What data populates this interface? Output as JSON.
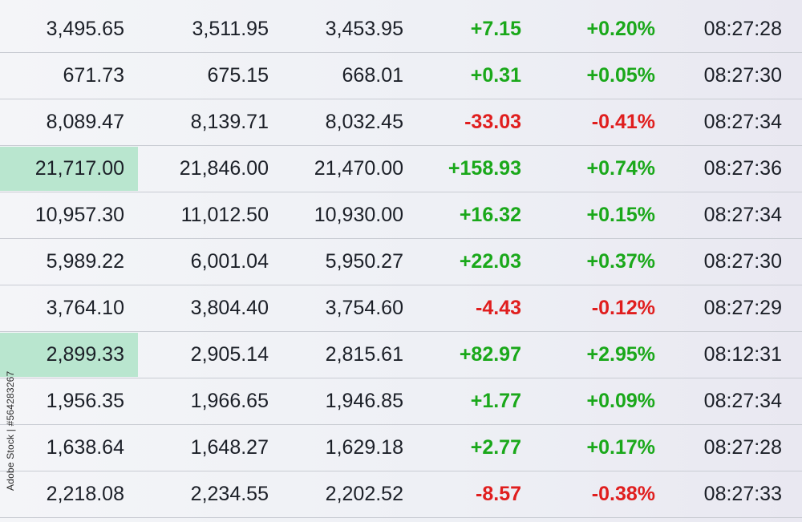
{
  "rows": [
    {
      "last": "3,495.65",
      "high": "3,511.95",
      "low": "3,453.95",
      "change": "+7.15",
      "percent": "+0.20%",
      "time": "08:27:28",
      "trend": "up",
      "highlight": false
    },
    {
      "last": "671.73",
      "high": "675.15",
      "low": "668.01",
      "change": "+0.31",
      "percent": "+0.05%",
      "time": "08:27:30",
      "trend": "up",
      "highlight": false
    },
    {
      "last": "8,089.47",
      "high": "8,139.71",
      "low": "8,032.45",
      "change": "-33.03",
      "percent": "-0.41%",
      "time": "08:27:34",
      "trend": "down",
      "highlight": false
    },
    {
      "last": "21,717.00",
      "high": "21,846.00",
      "low": "21,470.00",
      "change": "+158.93",
      "percent": "+0.74%",
      "time": "08:27:36",
      "trend": "up",
      "highlight": true
    },
    {
      "last": "10,957.30",
      "high": "11,012.50",
      "low": "10,930.00",
      "change": "+16.32",
      "percent": "+0.15%",
      "time": "08:27:34",
      "trend": "up",
      "highlight": false
    },
    {
      "last": "5,989.22",
      "high": "6,001.04",
      "low": "5,950.27",
      "change": "+22.03",
      "percent": "+0.37%",
      "time": "08:27:30",
      "trend": "up",
      "highlight": false
    },
    {
      "last": "3,764.10",
      "high": "3,804.40",
      "low": "3,754.60",
      "change": "-4.43",
      "percent": "-0.12%",
      "time": "08:27:29",
      "trend": "down",
      "highlight": false
    },
    {
      "last": "2,899.33",
      "high": "2,905.14",
      "low": "2,815.61",
      "change": "+82.97",
      "percent": "+2.95%",
      "time": "08:12:31",
      "trend": "up",
      "highlight": true
    },
    {
      "last": "1,956.35",
      "high": "1,966.65",
      "low": "1,946.85",
      "change": "+1.77",
      "percent": "+0.09%",
      "time": "08:27:34",
      "trend": "up",
      "highlight": false
    },
    {
      "last": "1,638.64",
      "high": "1,648.27",
      "low": "1,629.18",
      "change": "+2.77",
      "percent": "+0.17%",
      "time": "08:27:28",
      "trend": "up",
      "highlight": false
    },
    {
      "last": "2,218.08",
      "high": "2,234.55",
      "low": "2,202.52",
      "change": "-8.57",
      "percent": "-0.38%",
      "time": "08:27:33",
      "trend": "down",
      "highlight": false
    }
  ],
  "watermark": "Adobe Stock | #564283267",
  "colors": {
    "up": "#1aa81a",
    "down": "#e01e1e",
    "highlight": "#b9e6cf",
    "text": "#1b1f27"
  }
}
